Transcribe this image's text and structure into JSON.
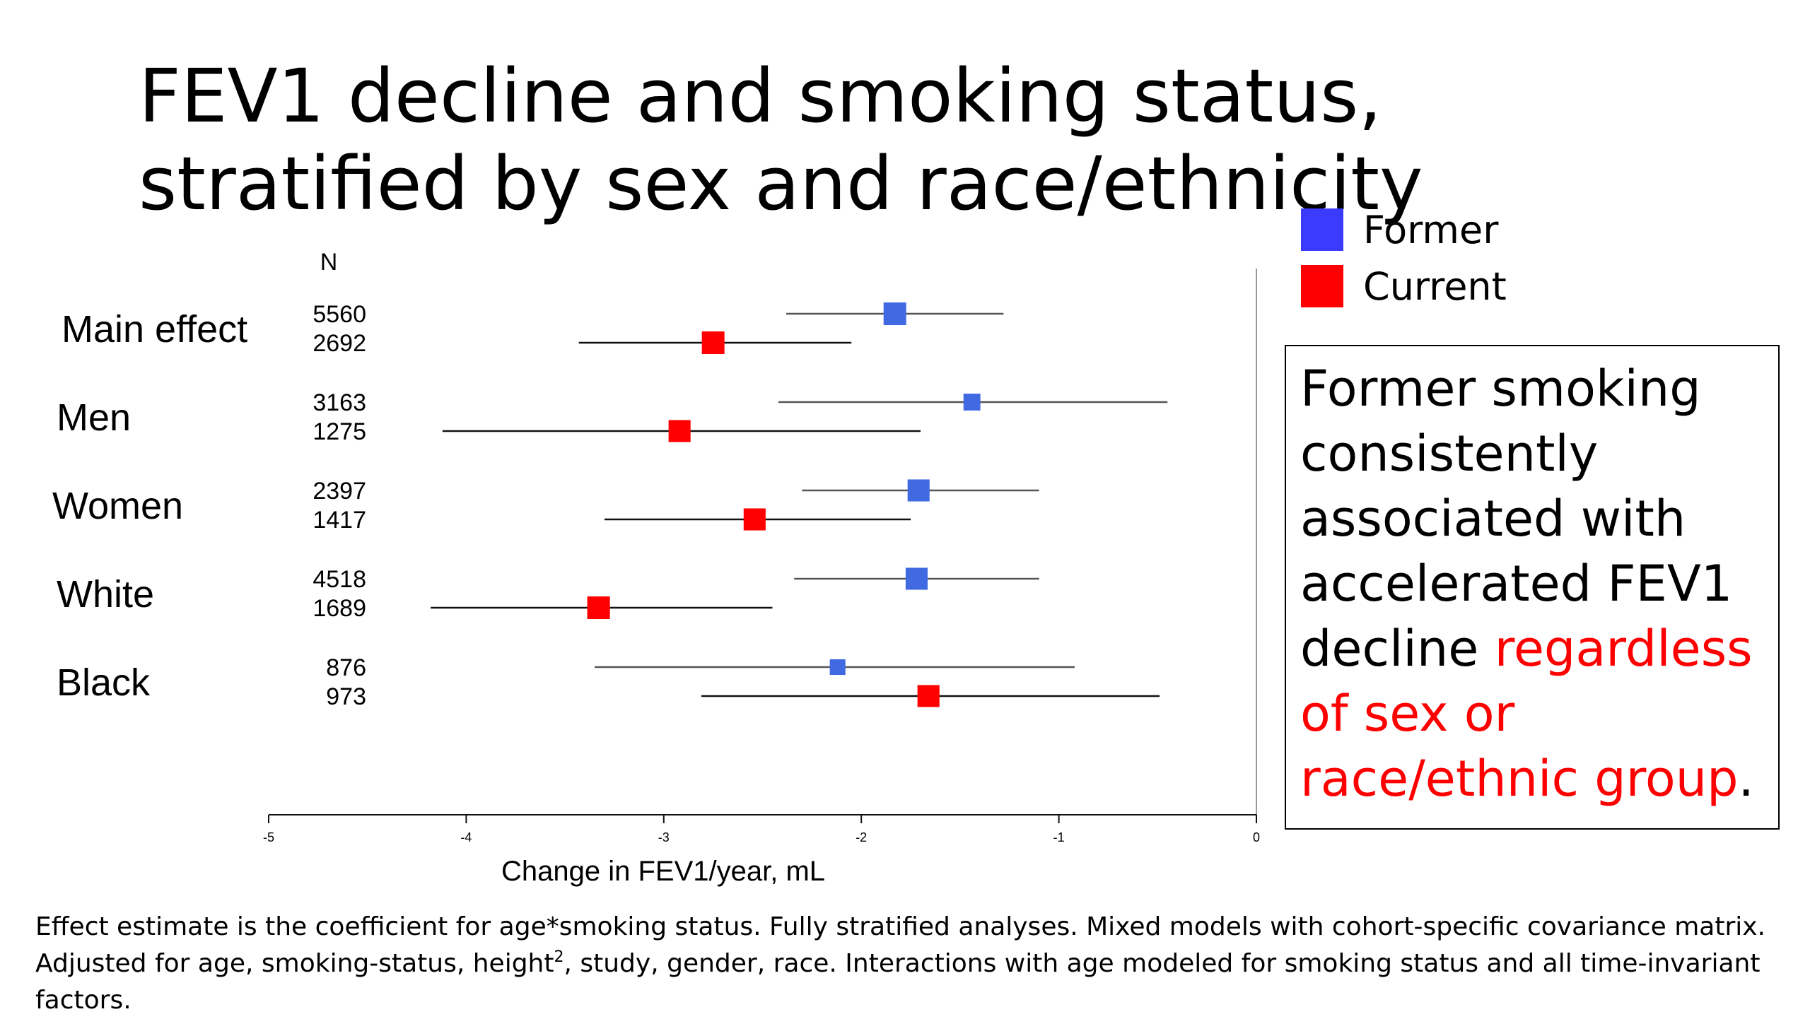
{
  "title": "FEV1 decline and smoking status, stratified by sex and race/ethnicity",
  "legend": {
    "items": [
      {
        "label": "Former",
        "color": "#3b3bff"
      },
      {
        "label": "Current",
        "color": "#ff0000"
      }
    ]
  },
  "callout": {
    "text_main": "Former smoking consistently associated with accelerated FEV1 decline ",
    "text_highlight": "regardless of sex or race/ethnic group",
    "text_end": ".",
    "highlight_color": "#ff0000"
  },
  "footnote": {
    "line1": "Effect estimate is the coefficient for age*smoking status. Fully stratified analyses. Mixed models with cohort-specific covariance matrix.",
    "line2_before": "Adjusted for age, smoking-status, height",
    "line2_sup": "2",
    "line2_after": ", study, gender, race. Interactions with age modeled for smoking status and all time-invariant factors."
  },
  "chart_data": {
    "type": "forest",
    "n_header": "N",
    "xlabel": "Change in FEV1/year, mL",
    "xlim": [
      -5,
      0
    ],
    "xticks": [
      "-5",
      "-4",
      "-3",
      "-2",
      "-1",
      "0"
    ],
    "series_colors": {
      "Former": "#4169e1",
      "Current": "#ff0000"
    },
    "groups": [
      {
        "label": "Main effect",
        "rows": [
          {
            "series": "Former",
            "n": "5560",
            "estimate": -1.83,
            "ci": [
              -2.38,
              -1.28
            ],
            "weight": 1.0
          },
          {
            "series": "Current",
            "n": "2692",
            "estimate": -2.75,
            "ci": [
              -3.43,
              -2.05
            ],
            "weight": 1.0
          }
        ]
      },
      {
        "label": "Men",
        "rows": [
          {
            "series": "Former",
            "n": "3163",
            "estimate": -1.44,
            "ci": [
              -2.42,
              -0.45
            ],
            "weight": 0.55
          },
          {
            "series": "Current",
            "n": "1275",
            "estimate": -2.92,
            "ci": [
              -4.12,
              -1.7
            ],
            "weight": 0.95
          }
        ]
      },
      {
        "label": "Women",
        "rows": [
          {
            "series": "Former",
            "n": "2397",
            "estimate": -1.71,
            "ci": [
              -2.3,
              -1.1
            ],
            "weight": 0.95
          },
          {
            "series": "Current",
            "n": "1417",
            "estimate": -2.54,
            "ci": [
              -3.3,
              -1.75
            ],
            "weight": 0.95
          }
        ]
      },
      {
        "label": "White",
        "rows": [
          {
            "series": "Former",
            "n": "4518",
            "estimate": -1.72,
            "ci": [
              -2.34,
              -1.1
            ],
            "weight": 0.95
          },
          {
            "series": "Current",
            "n": "1689",
            "estimate": -3.33,
            "ci": [
              -4.18,
              -2.45
            ],
            "weight": 1.0
          }
        ]
      },
      {
        "label": "Black",
        "rows": [
          {
            "series": "Former",
            "n": "876",
            "estimate": -2.12,
            "ci": [
              -3.35,
              -0.92
            ],
            "weight": 0.45
          },
          {
            "series": "Current",
            "n": "973",
            "estimate": -1.66,
            "ci": [
              -2.81,
              -0.49
            ],
            "weight": 0.95
          }
        ]
      }
    ]
  }
}
